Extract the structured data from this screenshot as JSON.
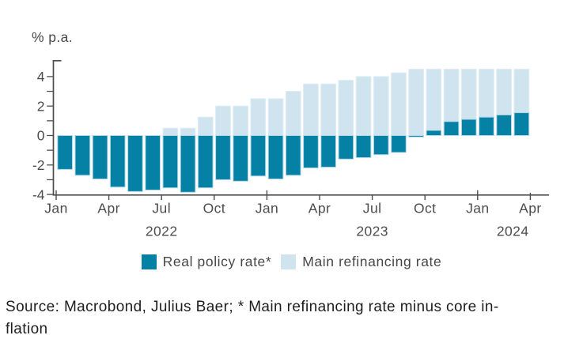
{
  "unit_label": "% p.a.",
  "colors": {
    "real_policy_rate": "#0581a5",
    "main_refinancing_rate": "#cfe4ee",
    "axis": "#4d4d4d",
    "label_text": "#4a4a4a",
    "source_text": "#1e1e1e",
    "background": "#ffffff"
  },
  "chart_data": {
    "type": "bar",
    "title": "",
    "ylabel": "% p.a.",
    "xlabel": "",
    "ylim": [
      -4,
      5.1
    ],
    "grid": false,
    "legend_position": "bottom",
    "categories": [
      "Jan 2022",
      "Feb 2022",
      "Mar 2022",
      "Apr 2022",
      "May 2022",
      "Jun 2022",
      "Jul 2022",
      "Aug 2022",
      "Sep 2022",
      "Oct 2022",
      "Nov 2022",
      "Dec 2022",
      "Jan 2023",
      "Feb 2023",
      "Mar 2023",
      "Apr 2023",
      "May 2023",
      "Jun 2023",
      "Jul 2023",
      "Aug 2023",
      "Sep 2023",
      "Oct 2023",
      "Nov 2023",
      "Dec 2023",
      "Jan 2024",
      "Feb 2024",
      "Mar 2024"
    ],
    "series": [
      {
        "name": "Real policy rate*",
        "color": "#0581a5",
        "values": [
          -2.3,
          -2.7,
          -2.95,
          -3.5,
          -3.8,
          -3.7,
          -3.55,
          -3.85,
          -3.55,
          -3.0,
          -3.1,
          -2.75,
          -2.95,
          -2.7,
          -2.2,
          -2.15,
          -1.6,
          -1.5,
          -1.3,
          -1.15,
          -0.1,
          0.35,
          0.95,
          1.1,
          1.25,
          1.4,
          1.55
        ]
      },
      {
        "name": "Main refinancing rate",
        "color": "#cfe4ee",
        "values": [
          0,
          0,
          0,
          0,
          0,
          0,
          0.5,
          0.5,
          1.25,
          2.0,
          2.0,
          2.5,
          2.5,
          3.0,
          3.5,
          3.5,
          3.75,
          4.0,
          4.0,
          4.25,
          4.5,
          4.5,
          4.5,
          4.5,
          4.5,
          4.5,
          4.5
        ]
      }
    ],
    "y_ticks": [
      -4,
      -3,
      -2,
      -1,
      0,
      1,
      2,
      3,
      4
    ],
    "y_tick_labels": [
      "-4",
      "-2",
      "0",
      "2",
      "4"
    ],
    "x_ticks": [
      {
        "label": "Jan",
        "index": 0,
        "major": true
      },
      {
        "label": "Apr",
        "index": 3,
        "major": false
      },
      {
        "label": "Jul",
        "index": 6,
        "major": false
      },
      {
        "label": "Oct",
        "index": 9,
        "major": false
      },
      {
        "label": "Jan",
        "index": 12,
        "major": true
      },
      {
        "label": "Apr",
        "index": 15,
        "major": false
      },
      {
        "label": "Jul",
        "index": 18,
        "major": false
      },
      {
        "label": "Oct",
        "index": 21,
        "major": false
      },
      {
        "label": "Jan",
        "index": 24,
        "major": true
      },
      {
        "label": "Apr",
        "index": 27,
        "major": false
      }
    ],
    "year_labels": [
      {
        "label": "2022",
        "index": 6
      },
      {
        "label": "2023",
        "index": 18
      },
      {
        "label": "2024",
        "index": 26
      }
    ]
  },
  "legend": {
    "items": [
      {
        "label": "Real policy rate*",
        "color": "#0581a5"
      },
      {
        "label": "Main refinancing rate",
        "color": "#cfe4ee"
      }
    ]
  },
  "source": {
    "line1": "Source: Macrobond, Julius Baer; * Main refinancing rate minus core in-",
    "line2": "flation"
  }
}
